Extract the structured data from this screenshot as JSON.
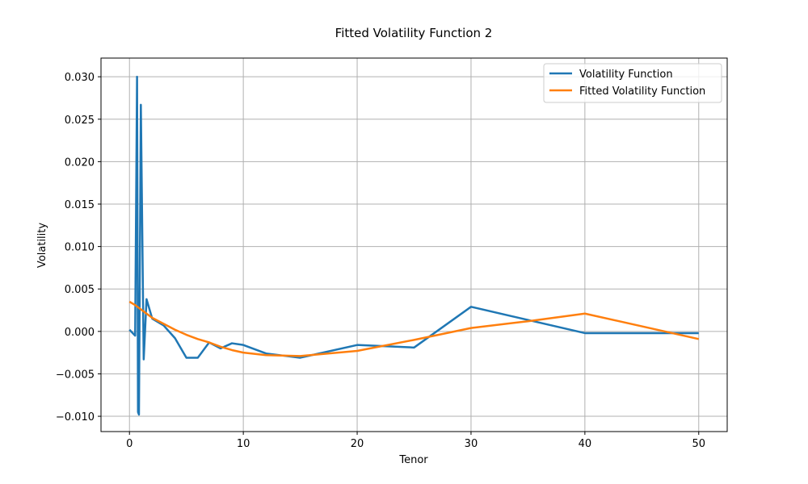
{
  "chart_data": {
    "type": "line",
    "title": "Fitted Volatility Function 2",
    "xlabel": "Tenor",
    "ylabel": "Volatility",
    "xlim": [
      -2.5,
      52.5
    ],
    "ylim": [
      -0.0118,
      0.0322
    ],
    "xticks": [
      0,
      10,
      20,
      30,
      40,
      50
    ],
    "xtick_labels": [
      "0",
      "10",
      "20",
      "30",
      "40",
      "50"
    ],
    "yticks": [
      -0.01,
      -0.005,
      0.0,
      0.005,
      0.01,
      0.015,
      0.02,
      0.025,
      0.03
    ],
    "ytick_labels": [
      "−0.010",
      "−0.005",
      "0.000",
      "0.005",
      "0.010",
      "0.015",
      "0.020",
      "0.025",
      "0.030"
    ],
    "grid": true,
    "legend_position": "top-right",
    "series": [
      {
        "name": "Volatility Function",
        "color": "#1f77b4",
        "x": [
          0,
          0.5,
          0.6667,
          0.75,
          0.8333,
          1.0,
          1.25,
          1.5,
          2,
          3,
          4,
          5,
          6,
          7,
          8,
          9,
          10,
          12,
          15,
          20,
          25,
          30,
          40,
          50
        ],
        "y": [
          0.0002,
          -0.0005,
          0.03,
          -0.0095,
          -0.0098,
          0.0267,
          -0.0033,
          0.0038,
          0.0015,
          0.0007,
          -0.0008,
          -0.0031,
          -0.0031,
          -0.0013,
          -0.002,
          -0.0014,
          -0.0016,
          -0.0026,
          -0.0031,
          -0.0016,
          -0.0019,
          0.0029,
          -0.0002,
          -0.0002
        ]
      },
      {
        "name": "Fitted Volatility Function",
        "color": "#ff7f0e",
        "x": [
          0,
          0.5,
          1,
          1.5,
          2,
          3,
          4,
          5,
          6,
          7,
          8,
          9,
          10,
          12,
          15,
          20,
          25,
          30,
          35,
          40,
          50
        ],
        "y": [
          0.0035,
          0.0031,
          0.0026,
          0.0021,
          0.0016,
          0.0009,
          0.0002,
          -0.0004,
          -0.0009,
          -0.0013,
          -0.0018,
          -0.0022,
          -0.0025,
          -0.0028,
          -0.0029,
          -0.0023,
          -0.001,
          0.0004,
          0.0012,
          0.0021,
          -0.0009
        ]
      }
    ]
  }
}
